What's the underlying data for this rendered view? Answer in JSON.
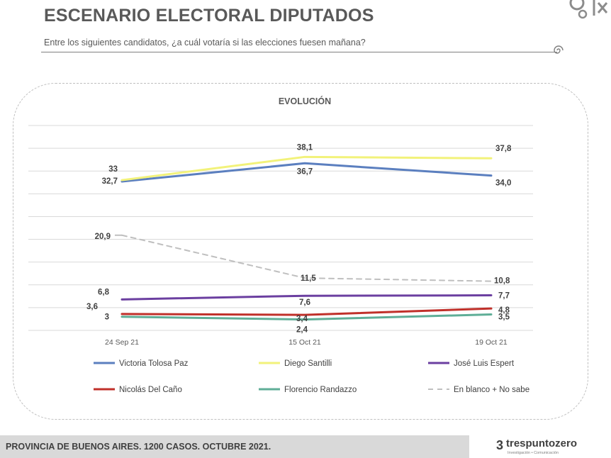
{
  "slide": {
    "title": "ESCENARIO ELECTORAL DIPUTADOS",
    "subtitle": "Entre los siguientes candidatos, ¿a cuál votaría si las elecciones fuesen mañana?",
    "footer": "PROVINCIA DE BUENOS AIRES. 1200 CASOS. OCTUBRE 2021.",
    "brand_name": "trespuntozero",
    "brand_tagline": "Investigación • Comunicación",
    "brand_glyph": "3"
  },
  "chart_data": {
    "type": "line",
    "title": "EVOLUCIÓN",
    "categories": [
      "24 Sep 21",
      "15 Oct 21",
      "19 Oct 21"
    ],
    "ylim": [
      0,
      45
    ],
    "grid": true,
    "legend_position": "bottom",
    "series": [
      {
        "name": "Victoria Tolosa Paz",
        "values": [
          32.7,
          36.7,
          34.0
        ],
        "labels": [
          "32,7",
          "36,7",
          "34,0"
        ],
        "color": "#5b7fbf",
        "dashed": false
      },
      {
        "name": "Diego Santilli",
        "values": [
          33,
          38.1,
          37.8
        ],
        "labels": [
          "33",
          "38,1",
          "37,8"
        ],
        "color": "#f2f27a",
        "dashed": false
      },
      {
        "name": "José Luis Espert",
        "values": [
          6.8,
          7.6,
          7.7
        ],
        "labels": [
          "6,8",
          "7,6",
          "7,7"
        ],
        "color": "#6b3fa0",
        "dashed": false
      },
      {
        "name": "Nicolás Del Caño",
        "values": [
          3.6,
          3.4,
          4.8
        ],
        "labels": [
          "3,6",
          "3,4",
          "4,8"
        ],
        "color": "#c0302a",
        "dashed": false
      },
      {
        "name": "Florencio Randazzo",
        "values": [
          3,
          2.4,
          3.5
        ],
        "labels": [
          "3",
          "2,4",
          "3,5"
        ],
        "color": "#5fae97",
        "dashed": false
      },
      {
        "name": "En blanco + No sabe",
        "values": [
          20.9,
          11.5,
          10.8
        ],
        "labels": [
          "20,9",
          "11,5",
          "10,8"
        ],
        "color": "#bfbfbf",
        "dashed": true
      }
    ]
  }
}
